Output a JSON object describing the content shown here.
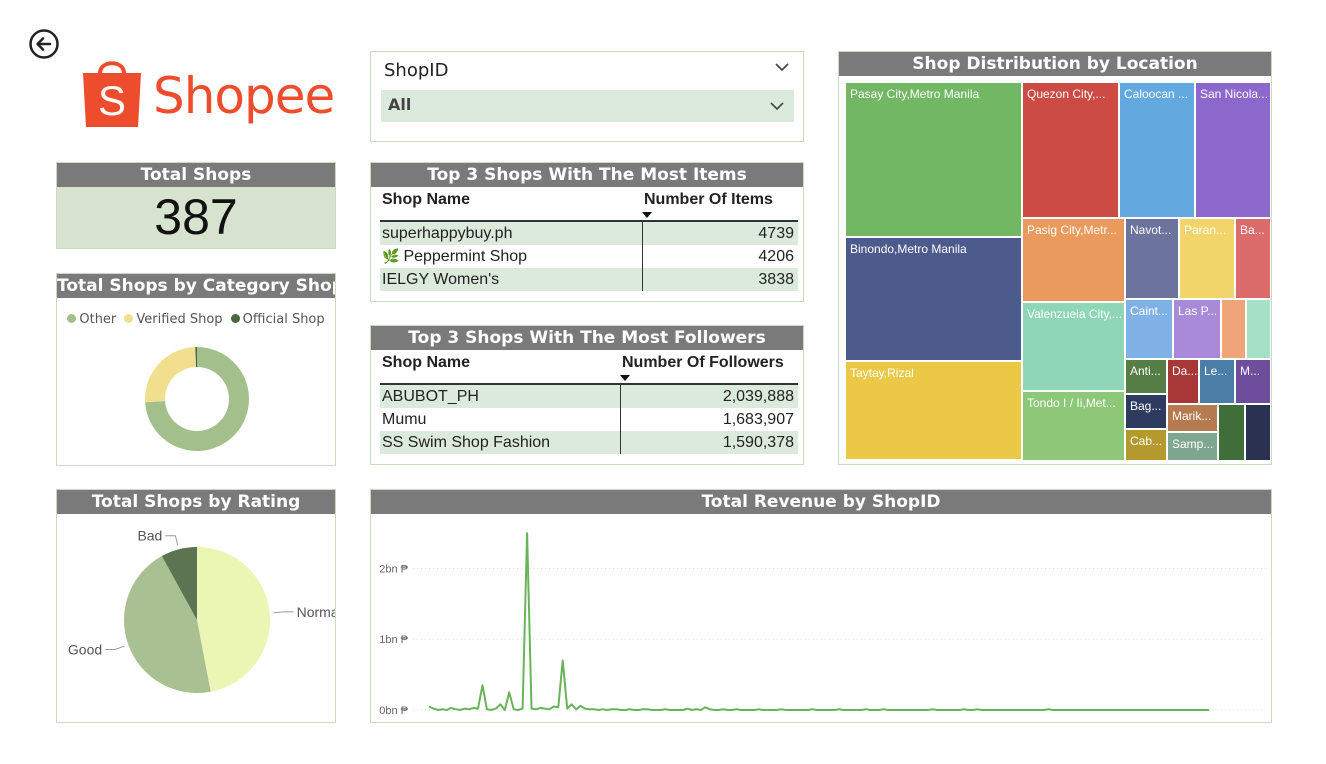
{
  "app": {
    "brand_name": "Shopee"
  },
  "total_shops": {
    "title": "Total Shops",
    "value": "387"
  },
  "shop_id_slicer": {
    "label": "ShopID",
    "selected": "All"
  },
  "top_items": {
    "title": "Top 3 Shops With The Most Items",
    "col_shop": "Shop Name",
    "col_value": "Number Of Items",
    "rows": [
      {
        "name": "superhappybuy.ph",
        "value": "4739"
      },
      {
        "name": "Peppermint Shop",
        "value": "4206"
      },
      {
        "name": "IELGY Women's",
        "value": "3838"
      }
    ]
  },
  "top_followers": {
    "title": "Top 3 Shops With The Most Followers",
    "col_shop": "Shop Name",
    "col_value": "Number Of Followers",
    "rows": [
      {
        "name": "ABUBOT_PH",
        "value": "2,039,888"
      },
      {
        "name": "Mumu",
        "value": "1,683,907"
      },
      {
        "name": "SS Swim Shop Fashion",
        "value": "1,590,378"
      }
    ]
  },
  "category_chart": {
    "title": "Total Shops by Category Shop",
    "legend": [
      {
        "label": "Other",
        "color": "#a3bf8c"
      },
      {
        "label": "Verified Shop",
        "color": "#f1df8f"
      },
      {
        "label": "Official Shop",
        "color": "#4a6540"
      }
    ]
  },
  "rating_chart": {
    "title": "Total Shops by Rating",
    "labels": [
      "Normal",
      "Good",
      "Bad"
    ]
  },
  "location_chart": {
    "title": "Shop Distribution by Location"
  },
  "revenue_chart": {
    "title": "Total Revenue by ShopID",
    "tick_labels": [
      "2bn ₱",
      "1bn ₱",
      "0bn ₱"
    ]
  },
  "chart_data": [
    {
      "type": "pie",
      "variant": "donut",
      "title": "Total Shops by Category Shop",
      "categories": [
        "Other",
        "Verified Shop",
        "Official Shop"
      ],
      "values": [
        0.74,
        0.255,
        0.005
      ],
      "colors": [
        "#a3bf8c",
        "#f1df8f",
        "#4a6540"
      ],
      "legend": "top"
    },
    {
      "type": "pie",
      "title": "Total Shops by Rating",
      "categories": [
        "Normal",
        "Good",
        "Bad"
      ],
      "values": [
        0.47,
        0.45,
        0.08
      ],
      "colors": [
        "#ebf6b4",
        "#a8c092",
        "#5c7451"
      ]
    },
    {
      "type": "heatmap",
      "variant": "treemap",
      "title": "Shop Distribution by Location",
      "nodes": [
        {
          "label": "Pasay City,Metro Manila",
          "color": "#72b764"
        },
        {
          "label": "Binondo,Metro Manila",
          "color": "#4c5a8c"
        },
        {
          "label": "Taytay,Rizal",
          "color": "#ebc846"
        },
        {
          "label": "Quezon City,...",
          "color": "#cc4b45"
        },
        {
          "label": "Caloocan ...",
          "color": "#63a8df"
        },
        {
          "label": "San Nicola...",
          "color": "#8c68cd"
        },
        {
          "label": "Pasig City,Metr...",
          "color": "#ea9a5c"
        },
        {
          "label": "Navot...",
          "color": "#6c749d"
        },
        {
          "label": "Paran...",
          "color": "#f1d46a"
        },
        {
          "label": "Ba...",
          "color": "#dc6b6b"
        },
        {
          "label": "Valenzuela City,...",
          "color": "#8fd6b8"
        },
        {
          "label": "Caint...",
          "color": "#7fb0e6"
        },
        {
          "label": "Las P...",
          "color": "#a98ad9"
        },
        {
          "label": "",
          "color": "#efa57a"
        },
        {
          "label": "",
          "color": "#a6e0c6"
        },
        {
          "label": "Tondo I / Ii,Met...",
          "color": "#8cc878"
        },
        {
          "label": "Anti...",
          "color": "#567d45"
        },
        {
          "label": "Da...",
          "color": "#a83838"
        },
        {
          "label": "Le...",
          "color": "#4b7ea6"
        },
        {
          "label": "M...",
          "color": "#6e4d9d"
        },
        {
          "label": "Bag...",
          "color": "#2d3b60"
        },
        {
          "label": "Marik...",
          "color": "#b57a4f"
        },
        {
          "label": "",
          "color": "#3f6e3a"
        },
        {
          "label": "",
          "color": "#2b3151"
        },
        {
          "label": "Cab...",
          "color": "#b49a2c"
        },
        {
          "label": "Samp...",
          "color": "#7fa68e"
        }
      ]
    },
    {
      "type": "line",
      "title": "Total Revenue by ShopID",
      "ylabel": "",
      "ylim": [
        0,
        2.6
      ],
      "y_unit": "bn ₱",
      "yticks": [
        0,
        1,
        2
      ],
      "series": [
        {
          "color": "#6bb35b",
          "values": [
            0.05,
            0.02,
            0,
            0.01,
            0,
            0.03,
            0.01,
            0,
            0.02,
            0.01,
            0.03,
            0.02,
            0.35,
            0.01,
            0,
            0.02,
            0.08,
            0,
            0.25,
            0.01,
            0,
            0.02,
            2.5,
            0.02,
            0.01,
            0.03,
            0.02,
            0.01,
            0.05,
            0.04,
            0.7,
            0.02,
            0.08,
            0.01,
            0.06,
            0.02,
            0.01,
            0.01,
            0,
            0.01,
            0,
            0.01,
            0.01,
            0,
            0,
            0.01,
            0,
            0,
            0.01,
            0.01,
            0,
            0,
            0,
            0.01,
            0,
            0,
            0,
            0,
            0.02,
            0,
            0.01,
            0,
            0.04,
            0.01,
            0,
            0,
            0.01,
            0,
            0,
            0.01,
            0,
            0,
            0,
            0,
            0.01,
            0,
            0,
            0,
            0,
            0.01,
            0,
            0,
            0,
            0,
            0,
            0,
            0.01,
            0,
            0,
            0,
            0,
            0,
            0.01,
            0,
            0,
            0,
            0,
            0,
            0.01,
            0,
            0,
            0,
            0.01,
            0,
            0,
            0,
            0,
            0,
            0,
            0,
            0,
            0,
            0,
            0.01,
            0,
            0,
            0,
            0,
            0,
            0,
            0.01,
            0,
            0,
            0.01,
            0,
            0,
            0,
            0,
            0,
            0,
            0,
            0,
            0,
            0,
            0,
            0,
            0,
            0,
            0,
            0.01,
            0,
            0,
            0,
            0,
            0,
            0,
            0,
            0,
            0,
            0,
            0,
            0,
            0,
            0,
            0,
            0,
            0,
            0,
            0,
            0,
            0,
            0,
            0,
            0,
            0,
            0,
            0,
            0,
            0,
            0,
            0,
            0,
            0,
            0,
            0,
            0
          ]
        }
      ]
    }
  ]
}
